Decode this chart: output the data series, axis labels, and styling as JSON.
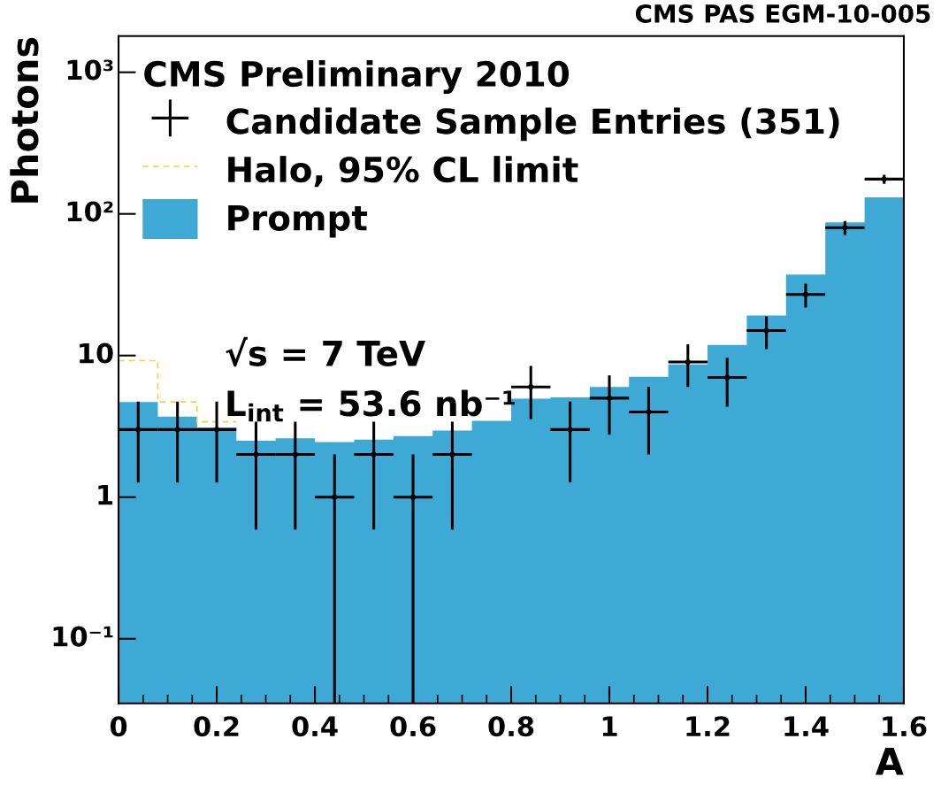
{
  "chart_data": {
    "type": "histogram",
    "xlabel": "A",
    "ylabel": "Photons",
    "legend_title": "CMS Preliminary 2010",
    "bins": [
      0,
      0.08,
      0.16,
      0.24,
      0.32,
      0.4,
      0.48,
      0.56,
      0.64,
      0.72,
      0.8,
      0.88,
      0.96,
      1.04,
      1.12,
      1.2,
      1.28,
      1.36,
      1.44,
      1.52,
      1.6
    ],
    "series": [
      {
        "name": "Prompt",
        "color": "#3fa9d6",
        "values": [
          4.7,
          3.7,
          3.1,
          2.5,
          2.6,
          2.45,
          2.55,
          2.7,
          2.95,
          3.46,
          4.95,
          5.07,
          6.0,
          7.07,
          8.67,
          11.9,
          19.2,
          37.3,
          87,
          131
        ]
      },
      {
        "name": "Halo, 95% CL limit",
        "type": "step",
        "color": "#f7d23e",
        "line_style": "dashed",
        "x": [
          0,
          0.08,
          0.16,
          0.24
        ],
        "values": [
          9.2,
          4.7,
          3.4,
          3.4
        ]
      },
      {
        "name": "Candidate Sample Entries (351)",
        "type": "scatter",
        "color": "#000000",
        "x": [
          0.04,
          0.12,
          0.2,
          0.28,
          0.36,
          0.44,
          0.52,
          0.6,
          0.68,
          0.76,
          0.84,
          0.92,
          1.0,
          1.08,
          1.16,
          1.24,
          1.32,
          1.4,
          1.48,
          1.56
        ],
        "values": [
          3,
          3,
          3,
          2,
          2,
          1,
          2,
          1,
          2,
          null,
          6,
          3,
          5,
          4,
          9,
          7,
          15,
          27,
          80,
          176
        ],
        "errors": [
          [
            1.27,
            4.73
          ],
          [
            1.27,
            4.73
          ],
          [
            1.27,
            4.73
          ],
          [
            0.59,
            3.41
          ],
          [
            0.59,
            3.41
          ],
          [
            0.035,
            2
          ],
          [
            0.59,
            3.41
          ],
          [
            0.035,
            2
          ],
          [
            0.59,
            3.41
          ],
          null,
          [
            3.55,
            8.45
          ],
          [
            1.27,
            4.73
          ],
          [
            2.76,
            7.24
          ],
          [
            2,
            6
          ],
          [
            6,
            12
          ],
          [
            4.35,
            9.65
          ],
          [
            11.1,
            18.9
          ],
          [
            21.8,
            32.2
          ],
          [
            71,
            89
          ],
          [
            163,
            189
          ]
        ],
        "xerrors": [
          0.04,
          0.04,
          0.04,
          0.04,
          0.04,
          0.04,
          0.04,
          0.04,
          0.04,
          null,
          0.04,
          0.04,
          0.04,
          0.04,
          0.04,
          0.04,
          0.04,
          0.04,
          0.04,
          0.04
        ]
      }
    ],
    "log": "y",
    "xlim": [
      0,
      1.6
    ],
    "ylim": [
      0.035,
      1800
    ],
    "xticks": [
      0,
      0.2,
      0.4,
      0.6,
      0.8,
      1,
      1.2,
      1.4,
      1.6
    ],
    "yticks": [
      {
        "value": 0.1,
        "label": "10⁻¹"
      },
      1,
      10,
      {
        "value": 100,
        "label": "10²"
      },
      {
        "value": 1000,
        "label": "10³"
      }
    ],
    "grid": false,
    "legend": "top left",
    "annotations": [
      "√s = 7 TeV",
      "L$_{int}$ = 53.6 nb⁻¹",
      "CMS PAS EGM-10-005"
    ]
  }
}
